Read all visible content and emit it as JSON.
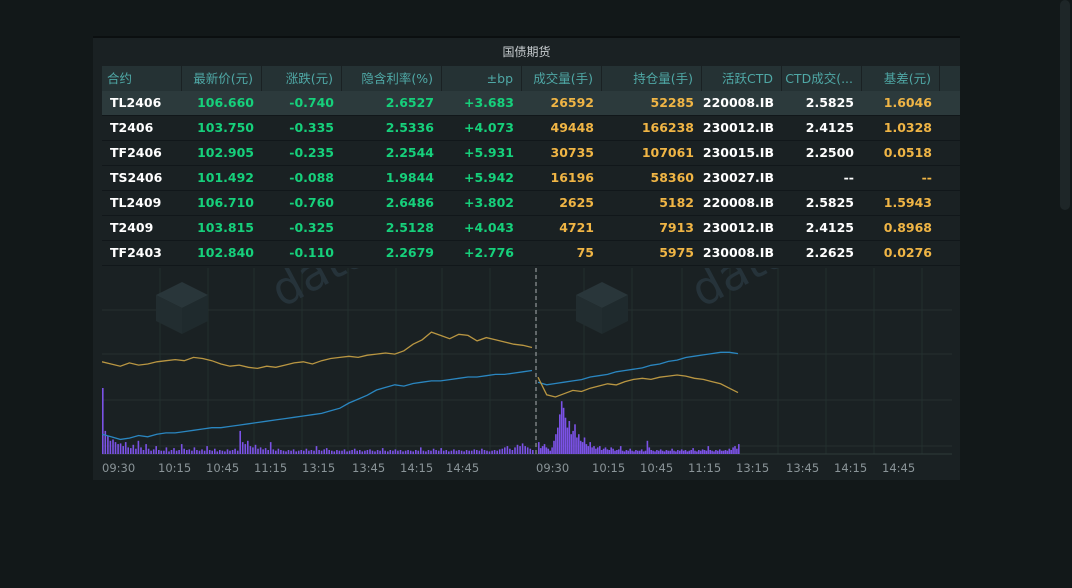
{
  "panel": {
    "title": "国债期货"
  },
  "columns": [
    "合约",
    "最新价(元)",
    "涨跌(元)",
    "隐含利率(%)",
    "±bp",
    "成交量(手)",
    "持仓量(手)",
    "活跃CTD",
    "CTD成交(...",
    "基差(元)"
  ],
  "rows": [
    [
      "TL2406",
      "106.660",
      "-0.740",
      "2.6527",
      "+3.683",
      "26592",
      "52285",
      "220008.IB",
      "2.5825",
      "1.6046"
    ],
    [
      "T2406",
      "103.750",
      "-0.335",
      "2.5336",
      "+4.073",
      "49448",
      "166238",
      "230012.IB",
      "2.4125",
      "1.0328"
    ],
    [
      "TF2406",
      "102.905",
      "-0.235",
      "2.2544",
      "+5.931",
      "30735",
      "107061",
      "230015.IB",
      "2.2500",
      "0.0518"
    ],
    [
      "TS2406",
      "101.492",
      "-0.088",
      "1.9844",
      "+5.942",
      "16196",
      "58360",
      "230027.IB",
      "--",
      "--"
    ],
    [
      "TL2409",
      "106.710",
      "-0.760",
      "2.6486",
      "+3.802",
      "2625",
      "5182",
      "220008.IB",
      "2.5825",
      "1.5943"
    ],
    [
      "T2409",
      "103.815",
      "-0.325",
      "2.5128",
      "+4.043",
      "4721",
      "7913",
      "230012.IB",
      "2.4125",
      "0.8968"
    ],
    [
      "TF2403",
      "102.840",
      "-0.110",
      "2.2679",
      "+2.776",
      "75",
      "5975",
      "230008.IB",
      "2.2625",
      "0.0276"
    ]
  ],
  "selected_row": 0,
  "watermark": "datayes",
  "colors": {
    "price_line": "#b99642",
    "rate_line": "#2a86c0",
    "volume_bars": "#7b52e6",
    "up_down_green": "#16d07b",
    "volume_orange": "#f0b545",
    "header_text": "#4fa8a6"
  },
  "chart_data": {
    "type": "line",
    "x_ticks_day1": [
      "09:30",
      "10:15",
      "10:45",
      "11:15",
      "13:15",
      "13:45",
      "14:15",
      "14:45"
    ],
    "x_ticks_day2": [
      "09:30",
      "10:15",
      "10:45",
      "11:15",
      "13:15",
      "13:45",
      "14:15",
      "14:45"
    ],
    "series": [
      {
        "values": [
          0.42,
          0.4,
          0.38,
          0.41,
          0.39,
          0.4,
          0.42,
          0.43,
          0.44,
          0.43,
          0.46,
          0.45,
          0.43,
          0.4,
          0.38,
          0.39,
          0.37,
          0.36,
          0.38,
          0.37,
          0.39,
          0.41,
          0.42,
          0.4,
          0.43,
          0.45,
          0.46,
          0.47,
          0.46,
          0.48,
          0.49,
          0.5,
          0.49,
          0.52,
          0.58,
          0.62,
          0.69,
          0.66,
          0.63,
          0.67,
          0.66,
          0.61,
          0.64,
          0.62,
          0.6,
          0.58,
          0.57,
          0.55,
          0.28,
          0.12,
          0.1,
          0.13,
          0.16,
          0.15,
          0.18,
          0.2,
          0.22,
          0.21,
          0.24,
          0.26,
          0.27,
          0.26,
          0.28,
          0.29,
          0.3,
          0.29,
          0.27,
          0.26,
          0.24,
          0.22,
          0.18,
          0.14
        ]
      },
      {
        "values": [
          0.26,
          0.24,
          0.22,
          0.23,
          0.25,
          0.24,
          0.26,
          0.27,
          0.27,
          0.28,
          0.29,
          0.3,
          0.31,
          0.31,
          0.32,
          0.33,
          0.34,
          0.35,
          0.36,
          0.37,
          0.38,
          0.39,
          0.4,
          0.41,
          0.42,
          0.44,
          0.46,
          0.5,
          0.53,
          0.56,
          0.6,
          0.62,
          0.64,
          0.63,
          0.65,
          0.66,
          0.67,
          0.67,
          0.68,
          0.69,
          0.7,
          0.7,
          0.71,
          0.72,
          0.72,
          0.73,
          0.74,
          0.75,
          0.66,
          0.64,
          0.65,
          0.66,
          0.67,
          0.68,
          0.7,
          0.71,
          0.72,
          0.74,
          0.75,
          0.76,
          0.77,
          0.79,
          0.8,
          0.82,
          0.83,
          0.85,
          0.86,
          0.87,
          0.88,
          0.89,
          0.89,
          0.88
        ]
      },
      {
        "values": [
          1.0,
          0.35,
          0.28,
          0.2,
          0.22,
          0.18,
          0.15,
          0.16,
          0.12,
          0.18,
          0.1,
          0.09,
          0.14,
          0.08,
          0.2,
          0.1,
          0.06,
          0.15,
          0.08,
          0.05,
          0.07,
          0.12,
          0.06,
          0.05,
          0.05,
          0.1,
          0.04,
          0.06,
          0.09,
          0.05,
          0.06,
          0.15,
          0.08,
          0.06,
          0.07,
          0.05,
          0.1,
          0.06,
          0.05,
          0.07,
          0.05,
          0.12,
          0.06,
          0.05,
          0.08,
          0.04,
          0.06,
          0.05,
          0.04,
          0.07,
          0.05,
          0.06,
          0.08,
          0.05,
          0.35,
          0.18,
          0.15,
          0.2,
          0.12,
          0.1,
          0.14,
          0.08,
          0.1,
          0.07,
          0.09,
          0.06,
          0.18,
          0.07,
          0.05,
          0.08,
          0.06,
          0.05,
          0.04,
          0.06,
          0.05,
          0.07,
          0.04,
          0.05,
          0.06,
          0.05,
          0.08,
          0.05,
          0.06,
          0.05,
          0.12,
          0.06,
          0.05,
          0.07,
          0.09,
          0.06,
          0.05,
          0.04,
          0.06,
          0.05,
          0.05,
          0.07,
          0.04,
          0.05,
          0.06,
          0.08,
          0.05,
          0.06,
          0.04,
          0.05,
          0.06,
          0.07,
          0.05,
          0.04,
          0.06,
          0.05,
          0.09,
          0.05,
          0.04,
          0.06,
          0.05,
          0.07,
          0.05,
          0.06,
          0.04,
          0.05,
          0.06,
          0.05,
          0.04,
          0.06,
          0.05,
          0.1,
          0.05,
          0.04,
          0.06,
          0.05,
          0.08,
          0.06,
          0.05,
          0.09,
          0.05,
          0.06,
          0.04,
          0.05,
          0.07,
          0.05,
          0.06,
          0.05,
          0.04,
          0.06,
          0.05,
          0.05,
          0.07,
          0.06,
          0.05,
          0.08,
          0.06,
          0.05,
          0.04,
          0.05,
          0.06,
          0.05,
          0.07,
          0.08,
          0.1,
          0.12,
          0.08,
          0.06,
          0.1,
          0.14,
          0.12,
          0.16,
          0.12,
          0.1,
          0.08,
          0.06,
          0.18,
          0.09,
          0.12,
          0.15,
          0.1,
          0.08,
          0.05,
          0.1,
          0.2,
          0.3,
          0.4,
          0.6,
          0.8,
          0.7,
          0.55,
          0.4,
          0.5,
          0.3,
          0.35,
          0.45,
          0.25,
          0.3,
          0.2,
          0.18,
          0.25,
          0.15,
          0.12,
          0.18,
          0.1,
          0.12,
          0.08,
          0.1,
          0.12,
          0.06,
          0.08,
          0.1,
          0.07,
          0.06,
          0.1,
          0.08,
          0.05,
          0.06,
          0.07,
          0.12,
          0.05,
          0.04,
          0.06,
          0.05,
          0.08,
          0.05,
          0.04,
          0.06,
          0.05,
          0.05,
          0.07,
          0.04,
          0.05,
          0.2,
          0.1,
          0.06,
          0.05,
          0.04,
          0.06,
          0.05,
          0.07,
          0.05,
          0.04,
          0.06,
          0.05,
          0.05,
          0.08,
          0.05,
          0.04,
          0.06,
          0.05,
          0.07,
          0.05,
          0.06,
          0.04,
          0.05,
          0.06,
          0.09,
          0.05,
          0.04,
          0.06,
          0.05,
          0.07,
          0.06,
          0.05,
          0.12,
          0.06,
          0.05,
          0.04,
          0.06,
          0.05,
          0.07,
          0.05,
          0.05,
          0.06,
          0.05,
          0.08,
          0.06,
          0.1,
          0.12,
          0.08,
          0.15
        ]
      }
    ]
  }
}
